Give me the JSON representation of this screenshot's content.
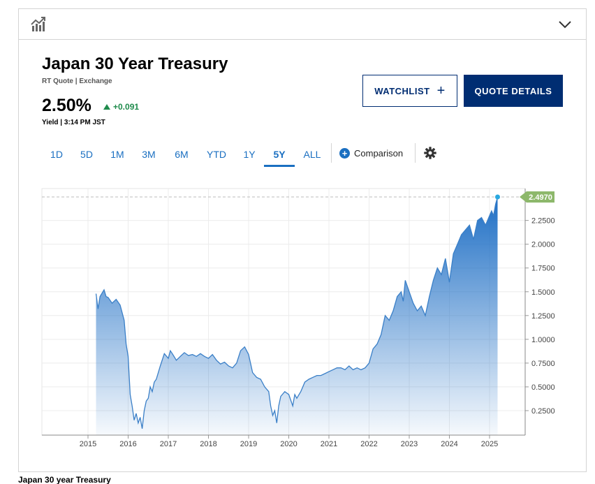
{
  "header": {
    "chart_icon": "bar-chart-trend-icon",
    "toggle_icon": "chevron-down-icon"
  },
  "quote": {
    "title": "Japan 30 Year Treasury",
    "subtitle": "RT Quote | Exchange",
    "price": "2.50%",
    "change": "+0.091",
    "change_direction": "up",
    "yield_line": "Yield | 3:14 PM JST",
    "up_color": "#1f8b4c"
  },
  "buttons": {
    "watchlist": "WATCHLIST",
    "quote_details": "QUOTE DETAILS"
  },
  "ranges": [
    {
      "label": "1D",
      "active": false
    },
    {
      "label": "5D",
      "active": false
    },
    {
      "label": "1M",
      "active": false
    },
    {
      "label": "3M",
      "active": false
    },
    {
      "label": "6M",
      "active": false
    },
    {
      "label": "YTD",
      "active": false
    },
    {
      "label": "1Y",
      "active": false
    },
    {
      "label": "5Y",
      "active": true
    },
    {
      "label": "ALL",
      "active": false
    }
  ],
  "comparison_label": "Comparison",
  "settings_icon": "gear-icon",
  "colors": {
    "brand_navy": "#002d72",
    "link_blue": "#1a6fc1",
    "line_blue": "#3a7fc7",
    "last_value_badge": "#8db86b"
  },
  "chart_data": {
    "type": "area",
    "x_ticks": [
      "2015",
      "2016",
      "2017",
      "2018",
      "2019",
      "2020",
      "2021",
      "2022",
      "2023",
      "2024",
      "2025"
    ],
    "y_ticks": [
      "0.2500",
      "0.5000",
      "0.7500",
      "1.0000",
      "1.2500",
      "1.5000",
      "1.7500",
      "2.0000",
      "2.2500"
    ],
    "ylim": [
      0.0,
      2.45
    ],
    "xlim": [
      2014.0,
      2026.0
    ],
    "last_value": "2.4970",
    "series": [
      {
        "x": [
          2015.2,
          2015.25,
          2015.3,
          2015.4,
          2015.45,
          2015.5,
          2015.6,
          2015.7,
          2015.8,
          2015.9,
          2015.95,
          2016.0,
          2016.05,
          2016.1,
          2016.15,
          2016.2,
          2016.25,
          2016.3,
          2016.35,
          2016.4,
          2016.45,
          2016.5,
          2016.55,
          2016.6,
          2016.65,
          2016.7,
          2016.8,
          2016.9,
          2017.0,
          2017.05,
          2017.1,
          2017.2,
          2017.3,
          2017.4,
          2017.5,
          2017.6,
          2017.7,
          2017.8,
          2017.9,
          2018.0,
          2018.1,
          2018.2,
          2018.3,
          2018.4,
          2018.5,
          2018.6,
          2018.7,
          2018.8,
          2018.9,
          2019.0,
          2019.1,
          2019.2,
          2019.3,
          2019.4,
          2019.5,
          2019.55,
          2019.6,
          2019.65,
          2019.7,
          2019.75,
          2019.8,
          2019.9,
          2020.0,
          2020.1,
          2020.15,
          2020.2,
          2020.3,
          2020.4,
          2020.5,
          2020.6,
          2020.7,
          2020.8,
          2020.9,
          2021.0,
          2021.1,
          2021.2,
          2021.3,
          2021.4,
          2021.5,
          2021.6,
          2021.7,
          2021.8,
          2021.9,
          2022.0,
          2022.1,
          2022.2,
          2022.3,
          2022.4,
          2022.5,
          2022.6,
          2022.7,
          2022.8,
          2022.85,
          2022.9,
          2023.0,
          2023.1,
          2023.2,
          2023.3,
          2023.4,
          2023.5,
          2023.6,
          2023.7,
          2023.8,
          2023.9,
          2024.0,
          2024.1,
          2024.2,
          2024.3,
          2024.4,
          2024.5,
          2024.6,
          2024.7,
          2024.8,
          2024.9,
          2025.0,
          2025.05,
          2025.1,
          2025.15,
          2025.2
        ],
        "values": [
          1.48,
          1.32,
          1.45,
          1.52,
          1.45,
          1.44,
          1.38,
          1.42,
          1.36,
          1.2,
          0.95,
          0.82,
          0.42,
          0.3,
          0.15,
          0.22,
          0.12,
          0.18,
          0.06,
          0.25,
          0.35,
          0.38,
          0.5,
          0.45,
          0.55,
          0.58,
          0.72,
          0.85,
          0.8,
          0.88,
          0.85,
          0.78,
          0.82,
          0.86,
          0.83,
          0.84,
          0.82,
          0.85,
          0.82,
          0.8,
          0.84,
          0.78,
          0.74,
          0.76,
          0.72,
          0.7,
          0.75,
          0.88,
          0.92,
          0.84,
          0.65,
          0.6,
          0.58,
          0.5,
          0.45,
          0.3,
          0.2,
          0.25,
          0.12,
          0.3,
          0.4,
          0.45,
          0.42,
          0.3,
          0.42,
          0.38,
          0.45,
          0.55,
          0.58,
          0.6,
          0.62,
          0.62,
          0.64,
          0.66,
          0.68,
          0.7,
          0.7,
          0.68,
          0.72,
          0.68,
          0.7,
          0.68,
          0.7,
          0.75,
          0.9,
          0.95,
          1.05,
          1.25,
          1.2,
          1.3,
          1.45,
          1.5,
          1.4,
          1.62,
          1.5,
          1.38,
          1.3,
          1.35,
          1.25,
          1.45,
          1.62,
          1.75,
          1.68,
          1.85,
          1.6,
          1.9,
          2.0,
          2.1,
          2.15,
          2.2,
          2.05,
          2.25,
          2.28,
          2.2,
          2.3,
          2.35,
          2.3,
          2.42,
          2.497
        ]
      }
    ],
    "grid": true,
    "y_axis_side": "right"
  }
}
